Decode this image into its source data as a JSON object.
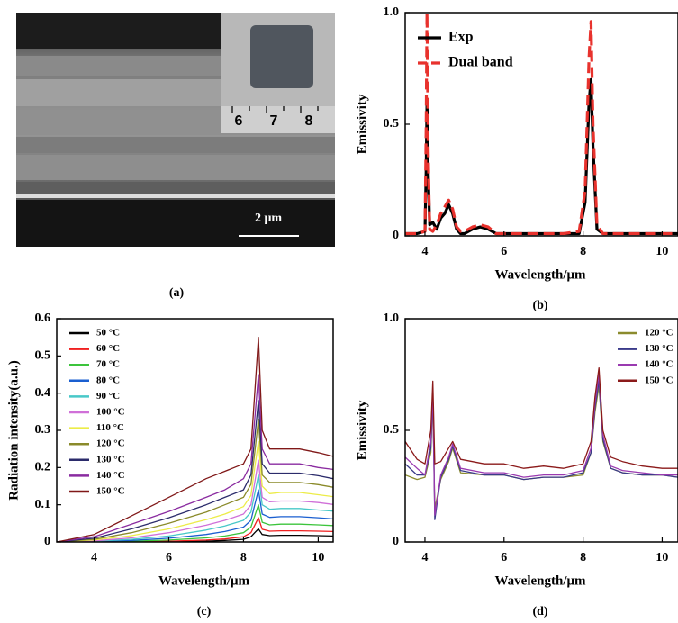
{
  "image_panel": {
    "label": "(a)",
    "scale_bar": "2 μm",
    "ruler_labels": [
      "6",
      "7",
      "8"
    ]
  },
  "chart_data": [
    {
      "type": "line",
      "label": "(b)",
      "xlabel": "Wavelength/μm",
      "ylabel": "Emissivity",
      "xlim": [
        3.5,
        10.4
      ],
      "ylim": [
        0,
        1
      ],
      "xticks": [
        4,
        6,
        8,
        10
      ],
      "yticks": [
        0,
        0.5,
        {
          "value": 1,
          "label": "1.0"
        }
      ],
      "legend": "upper left",
      "x": [
        3.5,
        3.8,
        4.0,
        4.03,
        4.05,
        4.08,
        4.12,
        4.2,
        4.3,
        4.4,
        4.5,
        4.6,
        4.7,
        4.8,
        4.9,
        5.0,
        5.2,
        5.4,
        5.6,
        5.8,
        6.0,
        6.5,
        7.0,
        7.5,
        7.9,
        8.05,
        8.15,
        8.2,
        8.25,
        8.35,
        8.5,
        9.0,
        9.5,
        10.0,
        10.4
      ],
      "series": [
        {
          "name": "Exp",
          "color": "#000000",
          "line_style": "solid",
          "values": [
            0.01,
            0.01,
            0.02,
            0.3,
            0.6,
            0.3,
            0.05,
            0.06,
            0.03,
            0.08,
            0.1,
            0.14,
            0.1,
            0.03,
            0.01,
            0.01,
            0.03,
            0.04,
            0.03,
            0.01,
            0.01,
            0.01,
            0.01,
            0.01,
            0.01,
            0.15,
            0.6,
            0.7,
            0.4,
            0.03,
            0.01,
            0.01,
            0.01,
            0.01,
            0.01
          ]
        },
        {
          "name": "Dual band",
          "color": "#e8322d",
          "line_style": "dashed",
          "values": [
            0.01,
            0.01,
            0.02,
            0.5,
            1.0,
            0.4,
            0.03,
            0.02,
            0.05,
            0.1,
            0.13,
            0.16,
            0.12,
            0.04,
            0.02,
            0.02,
            0.04,
            0.05,
            0.04,
            0.01,
            0.01,
            0.01,
            0.01,
            0.01,
            0.02,
            0.2,
            0.8,
            0.96,
            0.5,
            0.05,
            0.01,
            0.01,
            0.01,
            0.01,
            0.01
          ]
        }
      ]
    },
    {
      "type": "line",
      "label": "(c)",
      "xlabel": "Wavelength/μm",
      "ylabel": "Radiation intensity(a.u.)",
      "xlim": [
        3,
        10.4
      ],
      "ylim": [
        0,
        0.6
      ],
      "xticks": [
        4,
        6,
        8,
        10
      ],
      "yticks": [
        0,
        0.1,
        0.2,
        0.3,
        0.4,
        0.5,
        0.6
      ],
      "legend": "upper left",
      "x": [
        3,
        4,
        5,
        6,
        7,
        7.5,
        8,
        8.2,
        8.3,
        8.4,
        8.5,
        8.7,
        9,
        9.5,
        10,
        10.4
      ],
      "series": [
        {
          "name": "50 °C",
          "color": "#000000",
          "line_style": "solid",
          "values": [
            0,
            0,
            0,
            0.001,
            0.002,
            0.004,
            0.007,
            0.014,
            0.025,
            0.035,
            0.02,
            0.017,
            0.018,
            0.018,
            0.017,
            0.016
          ]
        },
        {
          "name": "60 °C",
          "color": "#f02020",
          "line_style": "solid",
          "values": [
            0,
            0,
            0.001,
            0.002,
            0.005,
            0.008,
            0.014,
            0.025,
            0.045,
            0.065,
            0.034,
            0.029,
            0.03,
            0.03,
            0.029,
            0.028
          ]
        },
        {
          "name": "70 °C",
          "color": "#3cc43c",
          "line_style": "solid",
          "values": [
            0,
            0,
            0.002,
            0.005,
            0.011,
            0.016,
            0.025,
            0.04,
            0.07,
            0.1,
            0.053,
            0.046,
            0.048,
            0.048,
            0.046,
            0.044
          ]
        },
        {
          "name": "80 °C",
          "color": "#1a5fd0",
          "line_style": "solid",
          "values": [
            0,
            0.001,
            0.004,
            0.01,
            0.02,
            0.028,
            0.04,
            0.058,
            0.1,
            0.14,
            0.075,
            0.066,
            0.068,
            0.068,
            0.065,
            0.062
          ]
        },
        {
          "name": "90 °C",
          "color": "#48c8c8",
          "line_style": "solid",
          "values": [
            0,
            0.002,
            0.007,
            0.016,
            0.032,
            0.043,
            0.058,
            0.08,
            0.13,
            0.18,
            0.1,
            0.088,
            0.09,
            0.09,
            0.086,
            0.083
          ]
        },
        {
          "name": "100 °C",
          "color": "#d070d8",
          "line_style": "solid",
          "values": [
            0,
            0.003,
            0.011,
            0.025,
            0.045,
            0.058,
            0.075,
            0.1,
            0.16,
            0.22,
            0.12,
            0.108,
            0.11,
            0.11,
            0.106,
            0.101
          ]
        },
        {
          "name": "110 °C",
          "color": "#ecec48",
          "line_style": "solid",
          "values": [
            0,
            0.005,
            0.017,
            0.035,
            0.06,
            0.075,
            0.095,
            0.125,
            0.2,
            0.27,
            0.15,
            0.13,
            0.133,
            0.133,
            0.127,
            0.122
          ]
        },
        {
          "name": "120 °C",
          "color": "#8a8a2a",
          "line_style": "solid",
          "values": [
            0,
            0.007,
            0.025,
            0.05,
            0.08,
            0.1,
            0.12,
            0.155,
            0.24,
            0.33,
            0.18,
            0.16,
            0.16,
            0.16,
            0.154,
            0.147
          ]
        },
        {
          "name": "130 °C",
          "color": "#2b2b6b",
          "line_style": "solid",
          "values": [
            0,
            0.01,
            0.035,
            0.065,
            0.1,
            0.12,
            0.14,
            0.18,
            0.28,
            0.38,
            0.21,
            0.185,
            0.185,
            0.185,
            0.178,
            0.17
          ]
        },
        {
          "name": "140 °C",
          "color": "#8a2ba0",
          "line_style": "solid",
          "values": [
            0,
            0.014,
            0.048,
            0.082,
            0.12,
            0.14,
            0.17,
            0.21,
            0.33,
            0.45,
            0.25,
            0.21,
            0.21,
            0.21,
            0.2,
            0.195
          ]
        },
        {
          "name": "150 °C",
          "color": "#801818",
          "line_style": "solid",
          "values": [
            0,
            0.02,
            0.07,
            0.12,
            0.17,
            0.19,
            0.21,
            0.25,
            0.4,
            0.55,
            0.3,
            0.25,
            0.25,
            0.25,
            0.24,
            0.23
          ]
        }
      ]
    },
    {
      "type": "line",
      "label": "(d)",
      "xlabel": "Wavelength/μm",
      "ylabel": "Emissivity",
      "xlim": [
        3.5,
        10.4
      ],
      "ylim": [
        0,
        1
      ],
      "xticks": [
        4,
        6,
        8,
        10
      ],
      "yticks": [
        0,
        0.5,
        {
          "value": 1,
          "label": "1.0"
        }
      ],
      "legend": "upper right",
      "x": [
        3.5,
        3.8,
        4.0,
        4.15,
        4.2,
        4.25,
        4.4,
        4.6,
        4.7,
        4.9,
        5.5,
        6,
        6.5,
        7,
        7.5,
        8,
        8.2,
        8.3,
        8.4,
        8.5,
        8.7,
        9,
        9.5,
        10,
        10.4
      ],
      "series": [
        {
          "name": "120 °C",
          "color": "#8b8b2d",
          "line_style": "solid",
          "values": [
            0.3,
            0.28,
            0.29,
            0.4,
            0.64,
            0.15,
            0.28,
            0.36,
            0.42,
            0.31,
            0.3,
            0.3,
            0.28,
            0.29,
            0.29,
            0.3,
            0.4,
            0.58,
            0.7,
            0.45,
            0.33,
            0.31,
            0.3,
            0.3,
            0.29
          ]
        },
        {
          "name": "130 °C",
          "color": "#3a3a8a",
          "line_style": "solid",
          "values": [
            0.35,
            0.3,
            0.3,
            0.42,
            0.66,
            0.1,
            0.29,
            0.37,
            0.43,
            0.32,
            0.3,
            0.3,
            0.28,
            0.29,
            0.29,
            0.31,
            0.4,
            0.6,
            0.72,
            0.46,
            0.33,
            0.31,
            0.3,
            0.3,
            0.29
          ]
        },
        {
          "name": "140 °C",
          "color": "#9a3ab0",
          "line_style": "solid",
          "values": [
            0.38,
            0.33,
            0.3,
            0.45,
            0.68,
            0.12,
            0.3,
            0.38,
            0.44,
            0.33,
            0.31,
            0.31,
            0.29,
            0.3,
            0.3,
            0.32,
            0.42,
            0.62,
            0.75,
            0.48,
            0.34,
            0.32,
            0.31,
            0.3,
            0.3
          ]
        },
        {
          "name": "150 °C",
          "color": "#8b1a1a",
          "line_style": "solid",
          "values": [
            0.45,
            0.37,
            0.35,
            0.5,
            0.72,
            0.35,
            0.36,
            0.42,
            0.45,
            0.37,
            0.35,
            0.35,
            0.33,
            0.34,
            0.33,
            0.35,
            0.45,
            0.65,
            0.78,
            0.5,
            0.38,
            0.36,
            0.34,
            0.33,
            0.33
          ]
        }
      ]
    }
  ]
}
